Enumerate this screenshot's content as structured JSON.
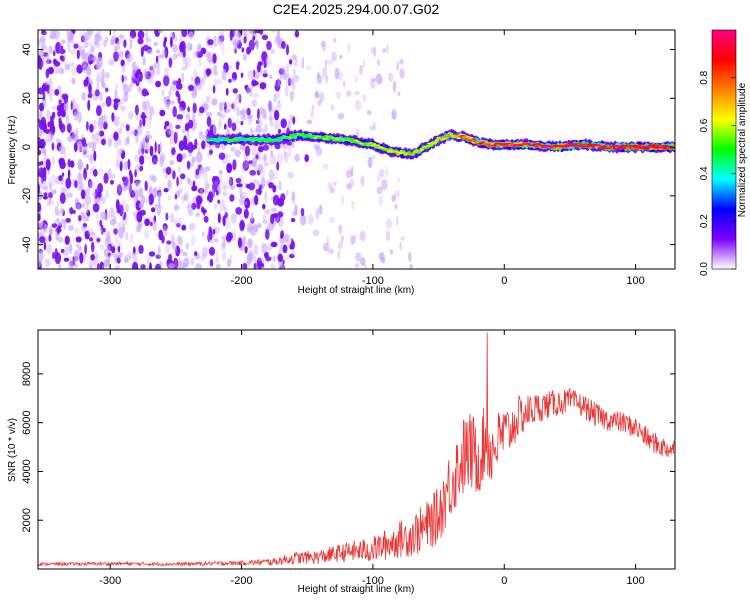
{
  "figure_title": "C2E4.2025.294.00.07.G02",
  "chart_data": [
    {
      "type": "heatmap",
      "title": "",
      "xlabel": "Height of straight line (km)",
      "ylabel": "Frequency (Hz)",
      "xlim": [
        -355,
        130
      ],
      "ylim": [
        -50,
        48
      ],
      "xticks": [
        -300,
        -200,
        -100,
        0,
        100
      ],
      "yticks": [
        -40,
        -20,
        0,
        20,
        40
      ],
      "colorbar": {
        "label": "Normalized spectral amplitude",
        "range": [
          0,
          1
        ],
        "ticks": [
          0.0,
          0.2,
          0.4,
          0.6,
          0.8
        ],
        "colormap": [
          "#ffffff",
          "#8000ff",
          "#0000ff",
          "#00ffff",
          "#00ff00",
          "#ffff00",
          "#ff8000",
          "#ff0000",
          "#ff0080"
        ]
      },
      "noise_region": {
        "x_range": [
          -355,
          -160
        ],
        "amplitude": 0.15
      },
      "signal_track": {
        "x": [
          -225,
          -200,
          -175,
          -155,
          -140,
          -120,
          -100,
          -85,
          -70,
          -60,
          -50,
          -40,
          -30,
          -20,
          -10,
          0,
          20,
          40,
          60,
          80,
          100,
          130
        ],
        "y": [
          3,
          3,
          3,
          5,
          4,
          3,
          1,
          -2,
          -3,
          0,
          3,
          5,
          4,
          2,
          1,
          1,
          1,
          0,
          1,
          0,
          0,
          0
        ],
        "amplitude": [
          0.35,
          0.4,
          0.4,
          0.45,
          0.45,
          0.45,
          0.5,
          0.55,
          0.55,
          0.5,
          0.6,
          0.65,
          0.7,
          0.75,
          0.75,
          0.8,
          0.8,
          0.85,
          0.85,
          0.9,
          0.9,
          0.85
        ]
      }
    },
    {
      "type": "line",
      "title": "",
      "xlabel": "Height of straight line (km)",
      "ylabel": "SNR (10 * v/v)",
      "xlim": [
        -355,
        130
      ],
      "ylim": [
        0,
        9800
      ],
      "xticks": [
        -300,
        -200,
        -100,
        0,
        100
      ],
      "yticks": [
        2000,
        4000,
        6000,
        8000
      ],
      "color": "#ee3333",
      "series": [
        {
          "x": [
            -355,
            -300,
            -250,
            -200,
            -175,
            -160,
            -140,
            -120,
            -100,
            -90,
            -80,
            -70,
            -60,
            -50,
            -45,
            -40,
            -35,
            -30,
            -25,
            -20,
            -15,
            -10,
            -5,
            0,
            5,
            10,
            20,
            30,
            40,
            50,
            60,
            70,
            80,
            90,
            100,
            110,
            120,
            130
          ],
          "y": [
            200,
            220,
            200,
            250,
            300,
            450,
            500,
            700,
            800,
            1000,
            1200,
            1400,
            1700,
            2200,
            3000,
            3600,
            4200,
            4700,
            4800,
            4500,
            5200,
            4800,
            5200,
            5600,
            5700,
            6200,
            6500,
            6700,
            6800,
            6900,
            6700,
            6300,
            6100,
            6000,
            5800,
            5300,
            5000,
            4900
          ],
          "noise": [
            60,
            70,
            70,
            90,
            150,
            250,
            300,
            400,
            550,
            650,
            750,
            900,
            1000,
            1200,
            1400,
            1500,
            1600,
            1700,
            1700,
            1600,
            1500,
            1400,
            1300,
            1100,
            1000,
            900,
            700,
            600,
            550,
            500,
            500,
            500,
            450,
            450,
            450,
            450,
            450,
            450
          ]
        }
      ],
      "annotations": [
        {
          "x": -13,
          "y": 9700,
          "label": ""
        }
      ]
    }
  ]
}
